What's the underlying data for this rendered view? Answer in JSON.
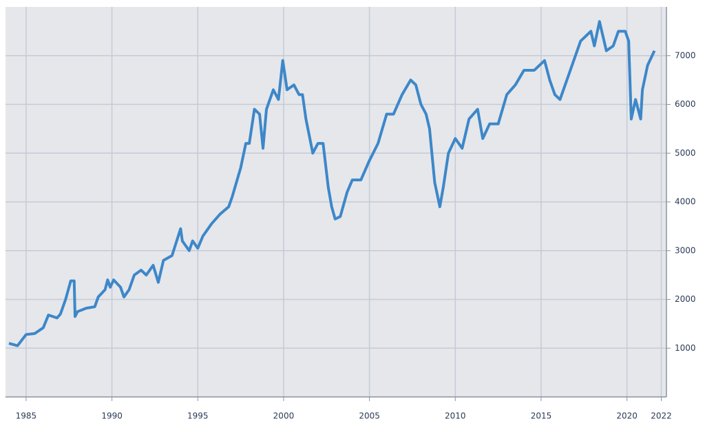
{
  "chart_data": {
    "type": "line",
    "x": [
      1984.0,
      1984.5,
      1985.0,
      1985.5,
      1986.0,
      1986.3,
      1986.8,
      1987.0,
      1987.3,
      1987.6,
      1987.8,
      1987.85,
      1988.0,
      1988.5,
      1989.0,
      1989.2,
      1989.6,
      1989.75,
      1989.9,
      1990.1,
      1990.5,
      1990.7,
      1991.0,
      1991.3,
      1991.7,
      1992.0,
      1992.4,
      1992.7,
      1993.0,
      1993.5,
      1994.0,
      1994.1,
      1994.5,
      1994.7,
      1995.0,
      1995.3,
      1995.8,
      1996.3,
      1996.8,
      1997.0,
      1997.5,
      1997.8,
      1998.0,
      1998.3,
      1998.6,
      1998.8,
      1999.0,
      1999.4,
      1999.7,
      1999.95,
      2000.2,
      2000.6,
      2000.9,
      2001.1,
      2001.3,
      2001.7,
      2002.0,
      2002.3,
      2002.6,
      2002.8,
      2003.0,
      2003.3,
      2003.7,
      2004.0,
      2004.5,
      2005.0,
      2005.5,
      2006.0,
      2006.4,
      2006.9,
      2007.4,
      2007.7,
      2008.0,
      2008.3,
      2008.5,
      2008.8,
      2009.1,
      2009.3,
      2009.6,
      2010.0,
      2010.4,
      2010.8,
      2011.3,
      2011.6,
      2012.0,
      2012.5,
      2013.0,
      2013.5,
      2014.0,
      2014.6,
      2015.2,
      2015.5,
      2015.8,
      2016.1,
      2016.5,
      2016.9,
      2017.3,
      2017.9,
      2018.1,
      2018.4,
      2018.8,
      2019.2,
      2019.5,
      2019.9,
      2020.1,
      2020.25,
      2020.5,
      2020.8,
      2020.9,
      2021.2,
      2021.6
    ],
    "series": [
      {
        "color": "#3d87c9",
        "values": [
          1100,
          1050,
          1280,
          1300,
          1420,
          1680,
          1620,
          1700,
          2000,
          2380,
          2380,
          1650,
          1750,
          1820,
          1850,
          2050,
          2200,
          2400,
          2250,
          2400,
          2250,
          2050,
          2200,
          2500,
          2600,
          2500,
          2700,
          2350,
          2800,
          2900,
          3450,
          3200,
          3000,
          3200,
          3050,
          3300,
          3550,
          3750,
          3900,
          4100,
          4700,
          5200,
          5200,
          5900,
          5800,
          5100,
          5900,
          6300,
          6100,
          6900,
          6300,
          6400,
          6200,
          6200,
          5700,
          5000,
          5200,
          5200,
          4300,
          3900,
          3650,
          3700,
          4200,
          4450,
          4450,
          4850,
          5200,
          5800,
          5800,
          6200,
          6500,
          6400,
          6000,
          5800,
          5500,
          4400,
          3900,
          4300,
          5000,
          5300,
          5100,
          5700,
          5900,
          5300,
          5600,
          5600,
          6200,
          6400,
          6700,
          6700,
          6900,
          6500,
          6200,
          6100,
          6500,
          6900,
          7300,
          7500,
          7200,
          7700,
          7100,
          7200,
          7500,
          7500,
          7300,
          5700,
          6100,
          5700,
          6300,
          6800,
          7100
        ]
      }
    ],
    "xlim": [
      1983.8,
      2022.3
    ],
    "xticks": [
      1985,
      1990,
      1995,
      2000,
      2005,
      2010,
      2015,
      2020,
      2022
    ],
    "ylim": [
      0,
      8000
    ],
    "yticks": [
      1000,
      2000,
      3000,
      4000,
      5000,
      6000,
      7000
    ],
    "grid": true
  }
}
